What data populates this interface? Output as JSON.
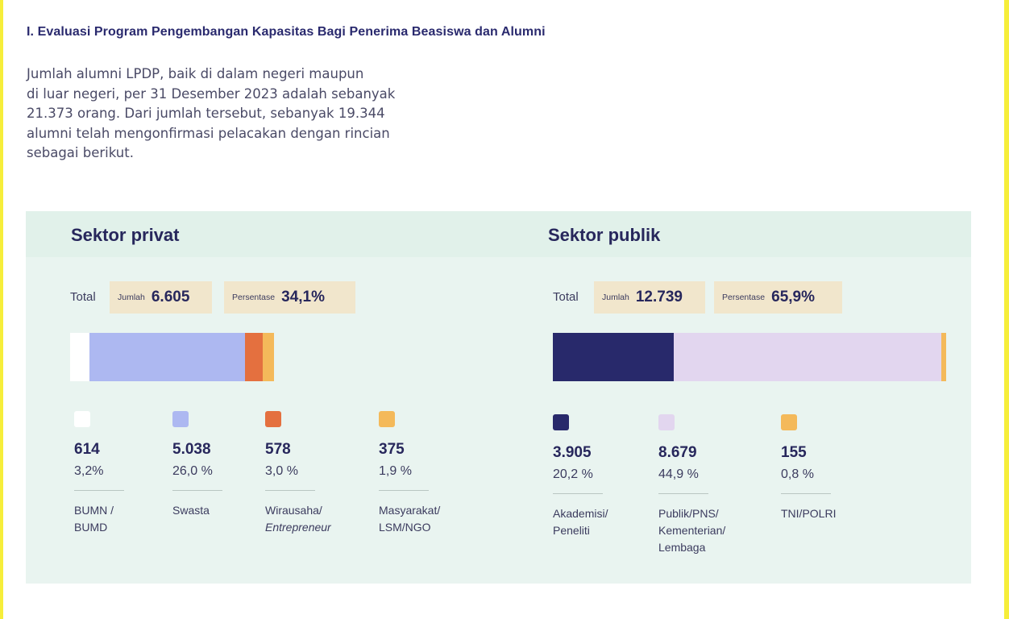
{
  "heading": "I. Evaluasi Program Pengembangan Kapasitas Bagi Penerima Beasiswa dan Alumni",
  "intro": "Jumlah alumni LPDP, baik di dalam negeri maupun\ndi luar negeri, per 31 Desember 2023 adalah sebanyak\n21.373 orang. Dari jumlah tersebut, sebanyak 19.344\nalumni telah mengonfirmasi pelacakan dengan rincian\nsebagai berikut.",
  "colors": {
    "panel_bg": "#e9f4f0",
    "title": "#27275c",
    "chip_bg": "#f1e6cc"
  },
  "chart_data": [
    {
      "type": "bar",
      "orientation": "horizontal-stacked",
      "title": "Sektor privat",
      "total_label": "Total",
      "jumlah_label": "Jumlah",
      "jumlah_value": "6.605",
      "persentase_label": "Persentase",
      "persentase_value": "34,1%",
      "share_of_total": 34.1,
      "series": [
        {
          "name": "BUMN /\nBUMD",
          "value": 614,
          "value_label": "614",
          "percent_label": "3,2%",
          "color": "#ffffff"
        },
        {
          "name": "Swasta",
          "value": 5038,
          "value_label": "5.038",
          "percent_label": "26,0 %",
          "color": "#adb8f1"
        },
        {
          "name": "Wirausaha/",
          "name_italic": "Entrepreneur",
          "value": 578,
          "value_label": "578",
          "percent_label": "3,0 %",
          "color": "#e4703f"
        },
        {
          "name": "Masyarakat/\nLSM/NGO",
          "value": 375,
          "value_label": "375",
          "percent_label": "1,9 %",
          "color": "#f4b95a"
        }
      ]
    },
    {
      "type": "bar",
      "orientation": "horizontal-stacked",
      "title": "Sektor publik",
      "total_label": "Total",
      "jumlah_label": "Jumlah",
      "jumlah_value": "12.739",
      "persentase_label": "Persentase",
      "persentase_value": "65,9%",
      "share_of_total": 65.9,
      "series": [
        {
          "name": "Akademisi/\nPeneliti",
          "value": 3905,
          "value_label": "3.905",
          "percent_label": "20,2 %",
          "color": "#28296b"
        },
        {
          "name": "Publik/PNS/\nKementerian/\nLembaga",
          "value": 8679,
          "value_label": "8.679",
          "percent_label": "44,9 %",
          "color": "#e2d6ef"
        },
        {
          "name": "TNI/POLRI",
          "value": 155,
          "value_label": "155",
          "percent_label": "0,8 %",
          "color": "#f4b95a"
        }
      ]
    }
  ]
}
